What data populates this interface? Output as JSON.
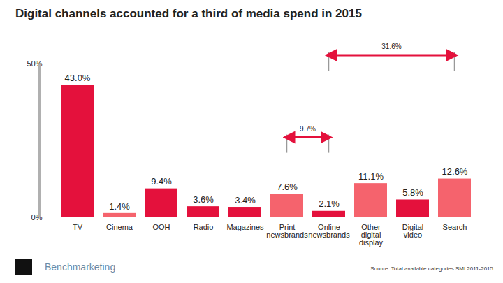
{
  "chart_data": {
    "type": "bar",
    "title": "Digital channels accounted for a third of media spend in 2015",
    "categories": [
      "TV",
      "Cinema",
      "OOH",
      "Radio",
      "Magazines",
      "Print newsbrands",
      "Online newsbrands",
      "Other digital display",
      "Digital video",
      "Search"
    ],
    "values": [
      43.0,
      1.4,
      9.4,
      3.6,
      3.4,
      7.6,
      2.1,
      11.1,
      5.8,
      12.6
    ],
    "value_labels": [
      "43.0%",
      "1.4%",
      "9.4%",
      "3.6%",
      "3.4%",
      "7.6%",
      "2.1%",
      "11.1%",
      "5.8%",
      "12.6%"
    ],
    "colors": [
      "#e4113c",
      "#f5636d",
      "#e4113c",
      "#e4113c",
      "#e4113c",
      "#f5636d",
      "#e4113c",
      "#f5636d",
      "#e4113c",
      "#f5636d"
    ],
    "ylim": [
      0,
      50
    ],
    "yticks": [
      {
        "value": 0,
        "label": "0%"
      },
      {
        "value": 50,
        "label": "50%"
      }
    ],
    "grid": false,
    "data_labels": true,
    "annotations": [
      {
        "label": "31.6%",
        "start": "Online newsbrands",
        "end": "Search"
      },
      {
        "label": "9.7%",
        "start": "Print newsbrands",
        "end": "Online newsbrands"
      }
    ],
    "brand": "Benchmarketing",
    "source": "Source: Total available categories SMI 2011-2015"
  }
}
